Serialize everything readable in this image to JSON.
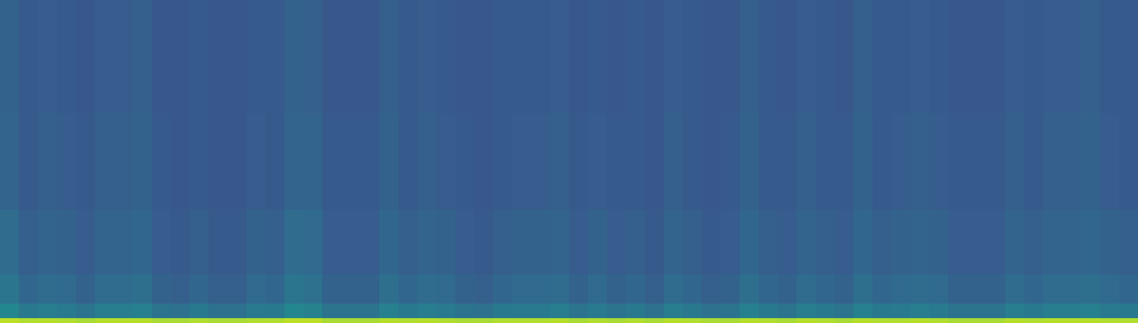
{
  "chart_data": {
    "type": "heatmap",
    "color": "viridis",
    "tick_labels": false,
    "xlim": [
      0,
      60
    ],
    "ylim": [
      0,
      100
    ],
    "zlim": [
      0,
      1
    ],
    "x_edges": [
      0,
      1,
      2,
      3,
      4,
      5,
      6,
      7,
      8,
      9,
      10,
      11,
      12,
      13,
      14,
      15,
      16,
      17,
      18,
      19,
      20,
      21,
      22,
      23,
      24,
      25,
      26,
      27,
      28,
      29,
      30,
      31,
      32,
      33,
      34,
      35,
      36,
      37,
      38,
      39,
      40,
      41,
      42,
      43,
      44,
      45,
      46,
      47,
      48,
      49,
      50,
      51,
      52,
      53,
      54,
      55,
      56,
      57,
      58,
      59,
      60
    ],
    "y_edges": [
      0,
      1.5,
      6,
      15,
      35,
      65,
      100
    ],
    "z": [
      [
        0.9,
        0.88,
        0.89,
        0.88,
        0.87,
        0.89,
        0.89,
        0.89,
        0.87,
        0.87,
        0.88,
        0.87,
        0.87,
        0.88,
        0.88,
        0.9,
        0.9,
        0.87,
        0.87,
        0.87,
        0.89,
        0.88,
        0.89,
        0.88,
        0.87,
        0.87,
        0.88,
        0.88,
        0.88,
        0.89,
        0.87,
        0.88,
        0.87,
        0.88,
        0.87,
        0.89,
        0.88,
        0.87,
        0.87,
        0.89,
        0.88,
        0.87,
        0.89,
        0.88,
        0.87,
        0.89,
        0.88,
        0.88,
        0.89,
        0.88,
        0.87,
        0.87,
        0.87,
        0.89,
        0.88,
        0.89,
        0.89,
        0.89,
        0.88,
        0.88
      ],
      [
        0.46,
        0.4,
        0.42,
        0.41,
        0.38,
        0.42,
        0.42,
        0.43,
        0.38,
        0.37,
        0.4,
        0.37,
        0.37,
        0.41,
        0.4,
        0.46,
        0.44,
        0.38,
        0.38,
        0.38,
        0.43,
        0.4,
        0.42,
        0.41,
        0.38,
        0.37,
        0.4,
        0.41,
        0.41,
        0.42,
        0.38,
        0.41,
        0.38,
        0.4,
        0.37,
        0.42,
        0.4,
        0.37,
        0.38,
        0.43,
        0.4,
        0.38,
        0.42,
        0.4,
        0.38,
        0.43,
        0.4,
        0.41,
        0.42,
        0.41,
        0.38,
        0.38,
        0.38,
        0.42,
        0.4,
        0.42,
        0.42,
        0.43,
        0.41,
        0.4
      ],
      [
        0.39,
        0.33,
        0.35,
        0.34,
        0.31,
        0.35,
        0.35,
        0.36,
        0.31,
        0.3,
        0.33,
        0.3,
        0.3,
        0.34,
        0.33,
        0.39,
        0.37,
        0.31,
        0.31,
        0.31,
        0.36,
        0.33,
        0.35,
        0.34,
        0.31,
        0.3,
        0.33,
        0.34,
        0.34,
        0.35,
        0.31,
        0.34,
        0.31,
        0.33,
        0.3,
        0.35,
        0.33,
        0.3,
        0.31,
        0.36,
        0.33,
        0.31,
        0.35,
        0.33,
        0.31,
        0.36,
        0.33,
        0.34,
        0.35,
        0.34,
        0.31,
        0.31,
        0.31,
        0.35,
        0.33,
        0.35,
        0.35,
        0.36,
        0.34,
        0.33
      ],
      [
        0.35,
        0.3,
        0.32,
        0.31,
        0.29,
        0.32,
        0.32,
        0.33,
        0.29,
        0.28,
        0.3,
        0.28,
        0.28,
        0.31,
        0.3,
        0.35,
        0.34,
        0.29,
        0.29,
        0.29,
        0.33,
        0.3,
        0.32,
        0.31,
        0.29,
        0.28,
        0.3,
        0.31,
        0.31,
        0.32,
        0.29,
        0.31,
        0.29,
        0.3,
        0.28,
        0.32,
        0.3,
        0.28,
        0.29,
        0.33,
        0.3,
        0.29,
        0.32,
        0.3,
        0.29,
        0.33,
        0.3,
        0.31,
        0.32,
        0.31,
        0.29,
        0.29,
        0.29,
        0.32,
        0.3,
        0.32,
        0.32,
        0.33,
        0.31,
        0.3
      ],
      [
        0.32,
        0.28,
        0.3,
        0.29,
        0.28,
        0.3,
        0.3,
        0.31,
        0.28,
        0.27,
        0.28,
        0.27,
        0.27,
        0.29,
        0.28,
        0.32,
        0.32,
        0.28,
        0.28,
        0.28,
        0.31,
        0.28,
        0.3,
        0.29,
        0.28,
        0.27,
        0.28,
        0.29,
        0.29,
        0.3,
        0.28,
        0.29,
        0.28,
        0.28,
        0.27,
        0.3,
        0.28,
        0.27,
        0.28,
        0.31,
        0.28,
        0.28,
        0.3,
        0.28,
        0.28,
        0.31,
        0.28,
        0.29,
        0.3,
        0.29,
        0.28,
        0.28,
        0.28,
        0.3,
        0.28,
        0.3,
        0.3,
        0.31,
        0.29,
        0.28
      ],
      [
        0.31,
        0.28,
        0.29,
        0.28,
        0.27,
        0.29,
        0.29,
        0.3,
        0.27,
        0.27,
        0.28,
        0.27,
        0.27,
        0.28,
        0.28,
        0.31,
        0.3,
        0.27,
        0.27,
        0.27,
        0.3,
        0.28,
        0.29,
        0.28,
        0.27,
        0.27,
        0.28,
        0.28,
        0.28,
        0.29,
        0.27,
        0.28,
        0.27,
        0.28,
        0.27,
        0.29,
        0.28,
        0.27,
        0.27,
        0.3,
        0.28,
        0.27,
        0.29,
        0.28,
        0.27,
        0.3,
        0.28,
        0.28,
        0.29,
        0.28,
        0.27,
        0.27,
        0.27,
        0.29,
        0.28,
        0.29,
        0.29,
        0.3,
        0.28,
        0.28
      ]
    ]
  }
}
